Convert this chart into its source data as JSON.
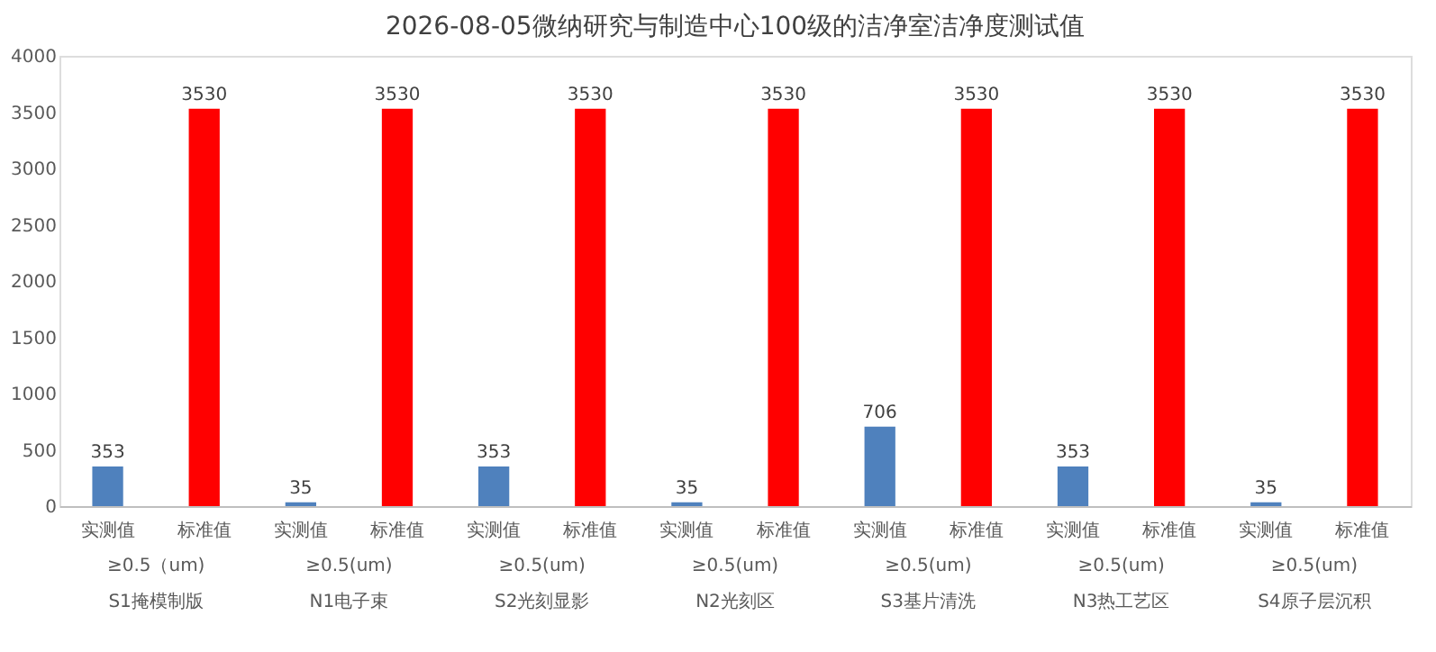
{
  "chart_data": {
    "type": "bar",
    "title": "2026-08-05微纳研究与制造中心100级的洁净室洁净度测试值",
    "categories": [
      "实测值",
      "标准值",
      "实测值",
      "标准值",
      "实测值",
      "标准值",
      "实测值",
      "标准值",
      "实测值",
      "标准值",
      "实测值",
      "标准值",
      "实测值",
      "标准值"
    ],
    "values": [
      353,
      3530,
      35,
      3530,
      353,
      3530,
      35,
      3530,
      706,
      3530,
      353,
      3530,
      35,
      3530
    ],
    "colors": [
      "#4f81bd",
      "#ff0000",
      "#4f81bd",
      "#ff0000",
      "#4f81bd",
      "#ff0000",
      "#4f81bd",
      "#ff0000",
      "#4f81bd",
      "#ff0000",
      "#4f81bd",
      "#ff0000",
      "#4f81bd",
      "#ff0000"
    ],
    "ylim": [
      0,
      4000
    ],
    "yticks": [
      0,
      500,
      1000,
      1500,
      2000,
      2500,
      3000,
      3500,
      4000
    ],
    "data_labels": true,
    "grid": false,
    "annotations": [
      "≥0.5（um)",
      "S1掩模制版",
      "≥0.5(um)",
      "N1电子束",
      "≥0.5(um)",
      "S2光刻显影",
      "≥0.5(um)",
      "N2光刻区",
      "≥0.5(um)",
      "S3基片清洗",
      "≥0.5(um)",
      "N3热工艺区",
      "≥0.5(um)",
      "S4原子层沉积"
    ]
  }
}
